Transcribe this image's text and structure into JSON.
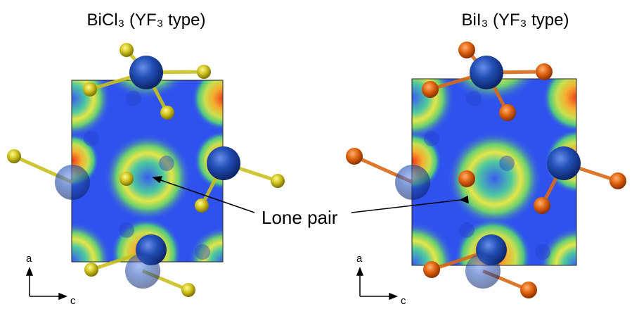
{
  "panels": [
    {
      "title": "BiCl₃ (YF₃ type)",
      "axes": {
        "vertical": "a",
        "horizontal": "c"
      }
    },
    {
      "title": "BiI₃ (YF₃ type)",
      "axes": {
        "vertical": "a",
        "horizontal": "c"
      }
    }
  ],
  "annotation": "Lone pair"
}
